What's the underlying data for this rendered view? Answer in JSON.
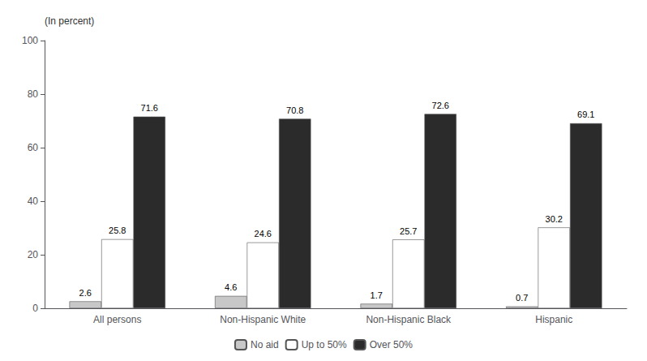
{
  "chart_data": {
    "type": "bar",
    "ylabel": "(In percent)",
    "categories": [
      "All persons",
      "Non-Hispanic White",
      "Non-Hispanic Black",
      "Hispanic"
    ],
    "series": [
      {
        "name": "No aid",
        "color": "#c8c8c8",
        "values": [
          2.6,
          4.6,
          1.7,
          0.7
        ]
      },
      {
        "name": "Up to 50%",
        "color": "#ffffff",
        "values": [
          25.8,
          24.6,
          25.7,
          30.2
        ]
      },
      {
        "name": "Over 50%",
        "color": "#2b2b2b",
        "values": [
          71.6,
          70.8,
          72.6,
          69.1
        ]
      }
    ],
    "ylim": [
      0,
      100
    ],
    "yticks": [
      0,
      20,
      40,
      60,
      80,
      100
    ],
    "grid": false,
    "legend": "bottom",
    "data_labels": true
  }
}
